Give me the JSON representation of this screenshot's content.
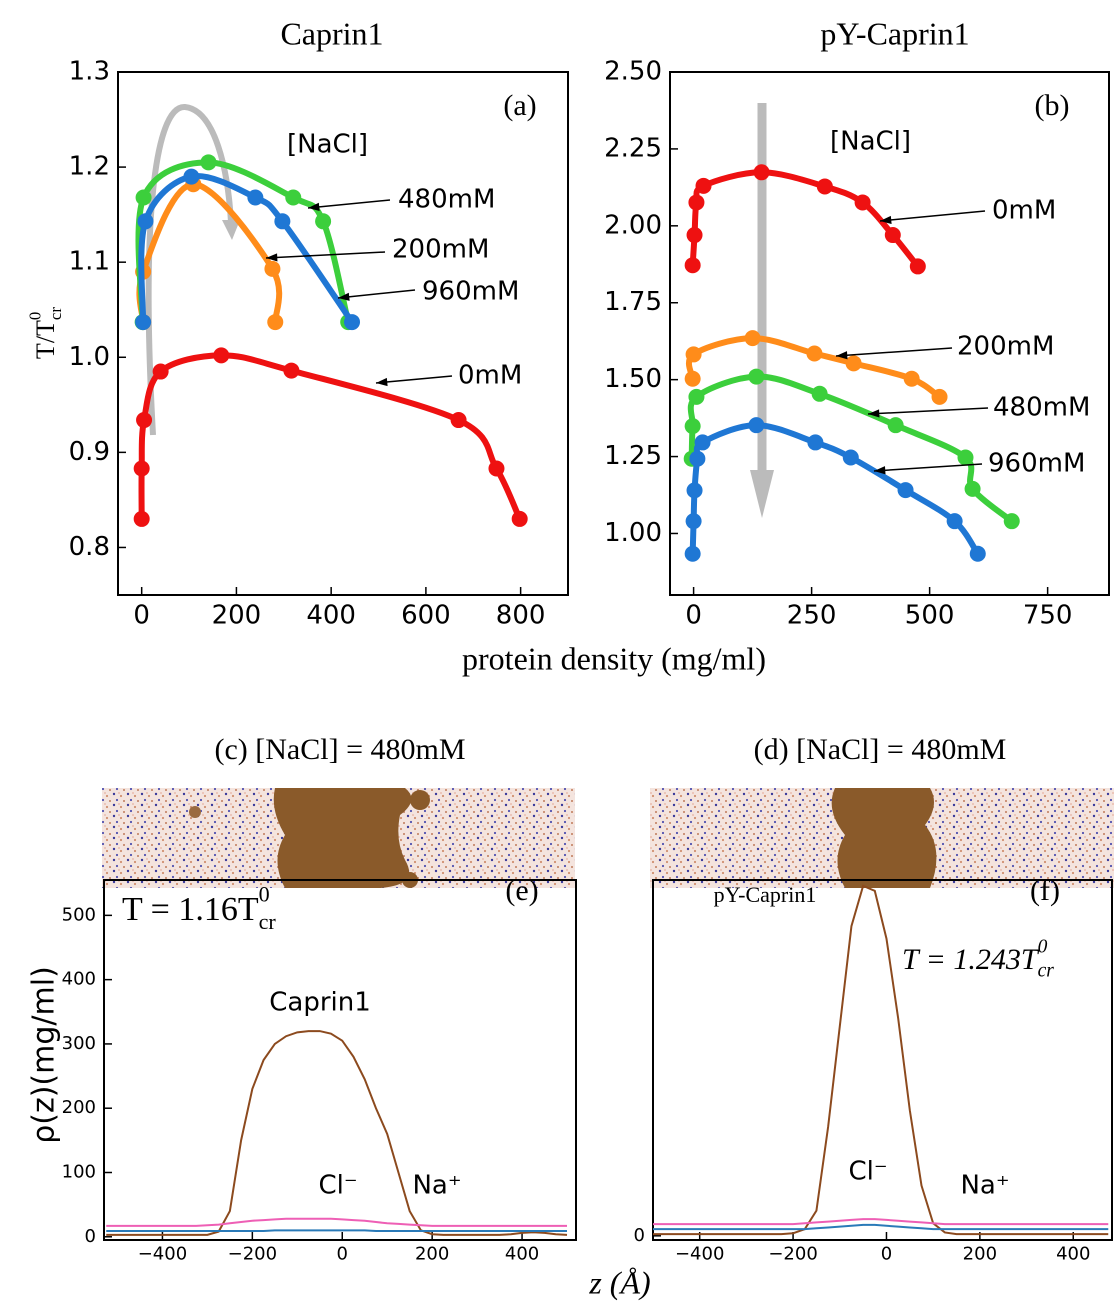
{
  "chart_data": [
    {
      "type": "scatter",
      "title": "Caprin1",
      "panel_label": "(a)",
      "annotation": "[NaCl]",
      "ylabel": {
        "text": "T/T",
        "sup": "0",
        "sub": "cr"
      },
      "line": true,
      "xlim": [
        -50,
        900
      ],
      "xticks": [
        0,
        200,
        400,
        600,
        800
      ],
      "ylim": [
        0.75,
        1.3
      ],
      "yticks": [
        0.8,
        0.9,
        {
          "value": 1,
          "label": "1.0"
        },
        1.1,
        1.2,
        1.3
      ],
      "series": [
        {
          "name": "0mM",
          "color": "#ee1111",
          "x": [
            0,
            0,
            5,
            40,
            168,
            316,
            669,
            749,
            798
          ],
          "values": [
            0.83,
            0.883,
            0.934,
            0.985,
            1.002,
            0.986,
            0.934,
            0.883,
            0.83
          ]
        },
        {
          "name": "200mM",
          "color": "#ff8c1a",
          "x": [
            3,
            3,
            109,
            276,
            282
          ],
          "values": [
            1.037,
            1.09,
            1.182,
            1.093,
            1.037
          ]
        },
        {
          "name": "480mM",
          "color": "#3ccf3c",
          "x": [
            2,
            4,
            141,
            320,
            383,
            436
          ],
          "values": [
            1.037,
            1.168,
            1.205,
            1.168,
            1.143,
            1.037
          ]
        },
        {
          "name": "960mM",
          "color": "#1f77d4",
          "x": [
            3,
            8,
            105,
            240,
            297,
            444
          ],
          "values": [
            1.037,
            1.143,
            1.19,
            1.168,
            1.143,
            1.037
          ]
        }
      ]
    },
    {
      "type": "scatter",
      "title": "pY-Caprin1",
      "panel_label": "(b)",
      "annotation": "[NaCl]",
      "line": true,
      "xlim": [
        -50,
        880
      ],
      "xticks": [
        0,
        250,
        500,
        750
      ],
      "ylim": [
        0.8,
        2.5
      ],
      "yticks": [
        {
          "value": 1,
          "label": "1.00"
        },
        1.25,
        {
          "value": 1.5,
          "label": "1.50"
        },
        1.75,
        {
          "value": 2,
          "label": "2.00"
        },
        2.25,
        {
          "value": 2.5,
          "label": "2.50"
        }
      ],
      "series": [
        {
          "name": "0mM",
          "color": "#ee1111",
          "x": [
            -2,
            2,
            6,
            21,
            144,
            278,
            358,
            422,
            475
          ],
          "values": [
            1.872,
            1.97,
            2.076,
            2.13,
            2.174,
            2.128,
            2.076,
            1.97,
            1.868
          ]
        },
        {
          "name": "200mM",
          "color": "#ff8c1a",
          "x": [
            -2,
            0,
            125,
            256,
            339,
            462,
            521
          ],
          "values": [
            1.503,
            1.582,
            1.635,
            1.585,
            1.553,
            1.503,
            1.444
          ]
        },
        {
          "name": "480mM",
          "color": "#3ccf3c",
          "x": [
            -4,
            -2,
            6,
            133,
            267,
            428,
            576,
            591,
            674
          ],
          "values": [
            1.243,
            1.349,
            1.444,
            1.51,
            1.454,
            1.352,
            1.247,
            1.145,
            1.04
          ]
        },
        {
          "name": "960mM",
          "color": "#1f77d4",
          "x": [
            -2,
            0,
            2,
            8,
            19,
            133,
            258,
            333,
            449,
            553,
            602
          ],
          "values": [
            0.934,
            1.04,
            1.14,
            1.243,
            1.296,
            1.352,
            1.296,
            1.247,
            1.141,
            1.04,
            0.934
          ]
        }
      ]
    },
    {
      "type": "line",
      "panel_label": "(e)",
      "annotation": {
        "text": "T = 1.16T",
        "sup": "0",
        "sub": "cr"
      },
      "ylabel": "ρ(z)(mg/ml)",
      "x": [
        -525,
        -500,
        -475,
        -450,
        -425,
        -400,
        -375,
        -350,
        -325,
        -300,
        -275,
        -250,
        -225,
        -200,
        -175,
        -150,
        -125,
        -100,
        -75,
        -50,
        -25,
        0,
        25,
        50,
        75,
        100,
        125,
        150,
        175,
        200,
        225,
        250,
        275,
        300,
        325,
        350,
        375,
        400,
        425,
        450,
        475,
        500
      ],
      "xlim": [
        -530,
        520
      ],
      "xticks": [
        {
          "value": -400,
          "label": "−400"
        },
        {
          "value": -200,
          "label": "−200"
        },
        0,
        200,
        400
      ],
      "ylim": [
        -5,
        555
      ],
      "yticks": [
        0,
        100,
        200,
        300,
        400,
        500
      ],
      "series": [
        {
          "name": "Caprin1",
          "color": "#8c4a1e",
          "values": [
            3,
            3,
            3,
            3,
            3,
            3,
            3,
            3,
            3,
            3,
            8,
            40,
            150,
            230,
            275,
            300,
            312,
            318,
            320,
            320,
            316,
            305,
            280,
            245,
            200,
            160,
            100,
            40,
            10,
            4,
            3,
            3,
            3,
            3,
            3,
            3,
            4,
            6,
            7,
            6,
            4,
            3
          ]
        },
        {
          "name": "Cl⁻",
          "color": "#ee5fb5",
          "values": [
            17,
            17,
            17,
            17,
            17,
            17,
            17,
            17,
            17,
            18,
            19,
            21,
            23,
            25,
            26,
            27,
            28,
            28,
            28,
            28,
            28,
            27,
            26,
            25,
            23,
            21,
            20,
            19,
            18,
            17,
            17,
            17,
            17,
            17,
            17,
            17,
            17,
            17,
            17,
            17,
            17,
            17
          ]
        },
        {
          "name": "Na⁺",
          "color": "#2a7ab8",
          "values": [
            9,
            9,
            9,
            9,
            9,
            9,
            9,
            9,
            9,
            9,
            9,
            9,
            9,
            9,
            9,
            10,
            10,
            10,
            10,
            10,
            10,
            10,
            10,
            10,
            9,
            9,
            9,
            9,
            9,
            9,
            9,
            9,
            9,
            9,
            9,
            9,
            9,
            9,
            9,
            9,
            9,
            9
          ]
        }
      ]
    },
    {
      "type": "line",
      "panel_label": "(f)",
      "annotation": {
        "text": "T = 1.243T",
        "sup": "0",
        "sub": "cr"
      },
      "x": [
        -500,
        -475,
        -450,
        -425,
        -400,
        -375,
        -350,
        -325,
        -300,
        -275,
        -250,
        -225,
        -200,
        -175,
        -150,
        -125,
        -100,
        -75,
        -50,
        -25,
        0,
        25,
        50,
        75,
        100,
        125,
        150,
        175,
        200,
        225,
        250,
        275,
        300,
        325,
        350,
        375,
        400,
        425,
        450,
        475
      ],
      "xlim": [
        -500,
        483
      ],
      "xticks": [
        {
          "value": -400,
          "label": "−400"
        },
        {
          "value": -200,
          "label": "−200"
        },
        0,
        200,
        400
      ],
      "ylim": [
        -5,
        425
      ],
      "yticks": [
        0
      ],
      "series": [
        {
          "name": "pY-Caprin1",
          "color": "#8c4a1e",
          "values": [
            2,
            2,
            2,
            2,
            2,
            2,
            2,
            2,
            2,
            2,
            2,
            2,
            3,
            8,
            30,
            130,
            250,
            370,
            418,
            412,
            355,
            260,
            150,
            60,
            15,
            4,
            2,
            2,
            2,
            2,
            2,
            2,
            2,
            2,
            2,
            2,
            2,
            2,
            2,
            2
          ]
        },
        {
          "name": "Cl⁻",
          "color": "#ee5fb5",
          "values": [
            14,
            14,
            14,
            14,
            14,
            14,
            14,
            14,
            14,
            14,
            14,
            14,
            14,
            15,
            16,
            17,
            18,
            19,
            20,
            20,
            19,
            18,
            17,
            16,
            15,
            14,
            14,
            14,
            14,
            14,
            14,
            14,
            14,
            14,
            14,
            14,
            14,
            14,
            14,
            14
          ]
        },
        {
          "name": "Na⁺",
          "color": "#2a7ab8",
          "values": [
            8,
            8,
            8,
            8,
            8,
            8,
            8,
            8,
            8,
            8,
            8,
            8,
            8,
            8,
            9,
            10,
            11,
            12,
            13,
            13,
            12,
            11,
            10,
            9,
            8,
            8,
            8,
            8,
            8,
            8,
            8,
            8,
            8,
            8,
            8,
            8,
            8,
            8,
            8,
            8
          ]
        }
      ]
    }
  ],
  "xlabel_top": "protein density (mg/ml)",
  "xlabel_bottom": "z (Å)",
  "snapshots": [
    {
      "title": "(c) [NaCl] = 480mM"
    },
    {
      "title": "(d) [NaCl] = 480mM"
    }
  ]
}
